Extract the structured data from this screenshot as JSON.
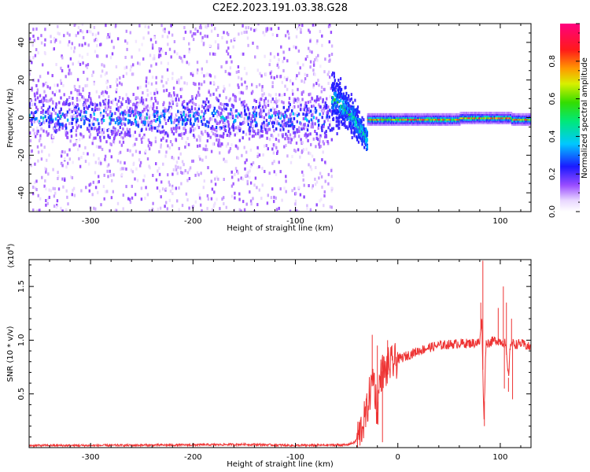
{
  "title": "C2E2.2023.191.03.38.G28",
  "chart_data": [
    {
      "type": "heatmap",
      "xlabel": "Height of straight line (km)",
      "ylabel": "Frequency (Hz)",
      "xlim": [
        -360,
        130
      ],
      "ylim": [
        -50,
        50
      ],
      "x_ticks": [
        -300,
        -200,
        -100,
        0,
        100
      ],
      "y_ticks": [
        -40,
        -20,
        0,
        20,
        40
      ],
      "colorbar": {
        "label": "Normalized spectral amplitude",
        "range": [
          0,
          1
        ],
        "ticks": [
          "0.0",
          "0.2",
          "0.4",
          "0.6",
          "0.8"
        ],
        "colormap": "rainbow (white-violet-blue-cyan-green-yellow-red-magenta)"
      },
      "segments": [
        {
          "x_range": [
            -360,
            -65
          ],
          "description_level": "broadband",
          "center_freq": 0,
          "core_halfwidth": 10,
          "scatter_halfwidth": 50,
          "peak_amplitude": 0.45
        },
        {
          "x_range": [
            -65,
            -30
          ],
          "center_freq_start": 10,
          "center_freq_end": -12,
          "peak_amplitude": 0.6
        },
        {
          "x_range": [
            -30,
            130
          ],
          "center_freq": -1,
          "halfwidth": 3,
          "peak_amplitude": 0.9
        }
      ]
    },
    {
      "type": "line",
      "xlabel": "Height of straight line (km)",
      "ylabel": "SNR (10 * v/v)",
      "y_scale_label": "(x10",
      "y_scale_exp": "4",
      "y_scale_close": ")",
      "xlim": [
        -360,
        130
      ],
      "ylim": [
        0,
        1.75
      ],
      "x_ticks": [
        -300,
        -200,
        -100,
        0,
        100
      ],
      "y_ticks": [
        0.5,
        1.0,
        1.5
      ],
      "y_tick_labels": [
        "0.5",
        "1.0",
        "1.5"
      ],
      "series": [
        {
          "color": "#ee3333",
          "x": [
            -360,
            -300,
            -200,
            -150,
            -100,
            -50,
            -42,
            -38,
            -35,
            -32,
            -30,
            -28,
            -26,
            -24,
            -22,
            -20,
            -18,
            -16,
            -14,
            -12,
            -10,
            -5,
            0,
            10,
            20,
            30,
            40,
            50,
            60,
            70,
            80,
            82,
            84,
            86,
            90,
            95,
            100,
            105,
            108,
            110,
            115,
            120,
            125,
            130
          ],
          "y": [
            0.02,
            0.02,
            0.025,
            0.03,
            0.02,
            0.025,
            0.05,
            0.12,
            0.2,
            0.28,
            0.35,
            0.48,
            0.55,
            0.7,
            0.5,
            0.3,
            0.6,
            0.7,
            0.72,
            0.68,
            0.76,
            0.78,
            0.82,
            0.86,
            0.9,
            0.93,
            0.95,
            0.96,
            0.97,
            0.97,
            0.98,
            1.2,
            0.25,
            0.97,
            0.98,
            1.0,
            0.99,
            0.97,
            0.65,
            0.98,
            0.96,
            0.97,
            0.95,
            0.93
          ]
        }
      ],
      "spikes": [
        {
          "x": 83,
          "y": 1.74
        },
        {
          "x": 84.5,
          "y": 0.2
        },
        {
          "x": 81,
          "y": 1.35
        },
        {
          "x": 103,
          "y": 1.5
        },
        {
          "x": 104,
          "y": 0.55
        },
        {
          "x": 98,
          "y": 1.3
        },
        {
          "x": 106,
          "y": 1.35
        },
        {
          "x": 108,
          "y": 0.52
        },
        {
          "x": 111,
          "y": 1.2
        },
        {
          "x": 112,
          "y": 0.45
        },
        {
          "x": -25,
          "y": 1.05
        },
        {
          "x": -20,
          "y": 0.95
        },
        {
          "x": -15,
          "y": 0.05
        },
        {
          "x": -10,
          "y": 1.0
        }
      ]
    }
  ]
}
